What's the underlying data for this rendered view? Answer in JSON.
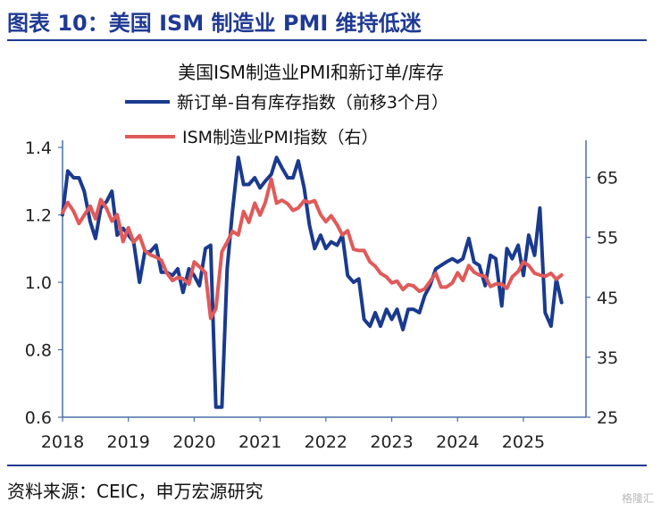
{
  "header": {
    "title": "图表 10：美国 ISM 制造业 PMI 维持低迷"
  },
  "footer": {
    "source": "资料来源：CEIC，申万宏源研究",
    "watermark": "格隆汇"
  },
  "colors": {
    "heading": "#1f3a93",
    "series_left": "#1a3a8f",
    "series_right": "#e05a5a",
    "axis": "#4a6fa5"
  },
  "chart_data": {
    "type": "line",
    "title": "美国ISM制造业PMI和新订单/库存",
    "legend_position": "top",
    "grid": false,
    "x_ticks": [
      "2018",
      "2019",
      "2020",
      "2021",
      "2022",
      "2023",
      "2024",
      "2025"
    ],
    "y_left": {
      "lim": [
        0.6,
        1.4
      ],
      "ticks": [
        "0.6",
        "0.8",
        "1.0",
        "1.2",
        "1.4"
      ]
    },
    "y_right": {
      "lim": [
        25,
        70
      ],
      "ticks": [
        "25",
        "35",
        "45",
        "55",
        "65"
      ]
    },
    "series": [
      {
        "name": "新订单-自有库存指数（前移3个月）",
        "axis": "left",
        "color": "#1a3a8f",
        "x": [
          2018.0,
          2018.08,
          2018.17,
          2018.25,
          2018.33,
          2018.42,
          2018.5,
          2018.58,
          2018.67,
          2018.75,
          2018.83,
          2018.92,
          2019.0,
          2019.08,
          2019.17,
          2019.25,
          2019.33,
          2019.42,
          2019.5,
          2019.58,
          2019.67,
          2019.75,
          2019.83,
          2019.92,
          2020.0,
          2020.08,
          2020.17,
          2020.25,
          2020.33,
          2020.42,
          2020.5,
          2020.58,
          2020.67,
          2020.75,
          2020.83,
          2020.92,
          2021.0,
          2021.08,
          2021.17,
          2021.25,
          2021.33,
          2021.42,
          2021.5,
          2021.58,
          2021.67,
          2021.75,
          2021.83,
          2021.92,
          2022.0,
          2022.08,
          2022.17,
          2022.25,
          2022.33,
          2022.42,
          2022.5,
          2022.58,
          2022.67,
          2022.75,
          2022.83,
          2022.92,
          2023.0,
          2023.08,
          2023.17,
          2023.25,
          2023.33,
          2023.42,
          2023.5,
          2023.58,
          2023.67,
          2023.75,
          2023.83,
          2023.92,
          2024.0,
          2024.08,
          2024.17,
          2024.25,
          2024.33,
          2024.42,
          2024.5,
          2024.58,
          2024.67,
          2024.75,
          2024.83,
          2024.92,
          2025.0,
          2025.08,
          2025.17,
          2025.25,
          2025.33,
          2025.42,
          2025.5,
          2025.58
        ],
        "values": [
          1.2,
          1.33,
          1.31,
          1.31,
          1.27,
          1.18,
          1.13,
          1.22,
          1.24,
          1.27,
          1.14,
          1.16,
          1.14,
          1.12,
          1.0,
          1.09,
          1.09,
          1.11,
          1.03,
          1.03,
          1.02,
          1.04,
          0.97,
          1.04,
          1.02,
          0.99,
          1.1,
          1.11,
          0.63,
          0.63,
          1.04,
          1.21,
          1.37,
          1.29,
          1.29,
          1.31,
          1.28,
          1.3,
          1.32,
          1.37,
          1.34,
          1.31,
          1.31,
          1.36,
          1.28,
          1.17,
          1.1,
          1.14,
          1.1,
          1.12,
          1.11,
          1.14,
          1.02,
          1.0,
          1.01,
          0.89,
          0.87,
          0.91,
          0.87,
          0.92,
          0.89,
          0.92,
          0.86,
          0.92,
          0.92,
          0.91,
          0.96,
          0.99,
          1.04,
          1.05,
          1.06,
          1.07,
          1.06,
          1.07,
          1.13,
          1.06,
          1.05,
          0.99,
          1.08,
          1.07,
          0.93,
          1.1,
          1.07,
          1.11,
          1.02,
          1.14,
          1.08,
          1.22,
          0.91,
          0.87,
          1.01,
          0.94
        ]
      },
      {
        "name": "ISM制造业PMI指数（右）",
        "axis": "right",
        "color": "#e05a5a",
        "x": [
          2018.0,
          2018.08,
          2018.17,
          2018.25,
          2018.33,
          2018.42,
          2018.5,
          2018.58,
          2018.67,
          2018.75,
          2018.83,
          2018.92,
          2019.0,
          2019.08,
          2019.17,
          2019.25,
          2019.33,
          2019.42,
          2019.5,
          2019.58,
          2019.67,
          2019.75,
          2019.83,
          2019.92,
          2020.0,
          2020.08,
          2020.17,
          2020.25,
          2020.33,
          2020.42,
          2020.5,
          2020.58,
          2020.67,
          2020.75,
          2020.83,
          2020.92,
          2021.0,
          2021.08,
          2021.17,
          2021.25,
          2021.33,
          2021.42,
          2021.5,
          2021.58,
          2021.67,
          2021.75,
          2021.83,
          2021.92,
          2022.0,
          2022.08,
          2022.17,
          2022.25,
          2022.33,
          2022.42,
          2022.5,
          2022.58,
          2022.67,
          2022.75,
          2022.83,
          2022.92,
          2023.0,
          2023.08,
          2023.17,
          2023.25,
          2023.33,
          2023.42,
          2023.5,
          2023.58,
          2023.67,
          2023.75,
          2023.83,
          2023.92,
          2024.0,
          2024.08,
          2024.17,
          2024.25,
          2024.33,
          2024.42,
          2024.5,
          2024.58,
          2024.67,
          2024.75,
          2024.83,
          2024.92,
          2025.0,
          2025.08,
          2025.17,
          2025.25,
          2025.33,
          2025.42,
          2025.5,
          2025.58
        ],
        "values": [
          59.1,
          60.8,
          59.3,
          57.3,
          58.7,
          60.2,
          58.1,
          61.3,
          59.8,
          57.7,
          58.8,
          54.3,
          56.6,
          54.2,
          55.3,
          52.8,
          52.1,
          51.7,
          51.2,
          49.1,
          47.8,
          48.3,
          48.1,
          47.2,
          50.9,
          50.1,
          49.1,
          41.5,
          43.1,
          52.6,
          54.2,
          56.0,
          55.4,
          59.3,
          57.5,
          60.7,
          58.7,
          60.8,
          64.7,
          60.7,
          61.2,
          60.6,
          59.5,
          59.9,
          61.1,
          60.8,
          61.1,
          58.8,
          57.6,
          58.6,
          57.1,
          55.4,
          56.1,
          53.0,
          52.8,
          52.8,
          50.9,
          50.2,
          49.0,
          48.4,
          47.4,
          47.7,
          46.3,
          47.1,
          46.9,
          46.0,
          46.4,
          47.6,
          49.0,
          46.7,
          46.7,
          47.4,
          49.1,
          47.8,
          50.3,
          49.2,
          48.7,
          48.5,
          46.8,
          47.2,
          47.2,
          46.5,
          48.4,
          49.3,
          50.9,
          50.3,
          49.0,
          48.7,
          48.5,
          49.0,
          48.0,
          48.7
        ]
      }
    ]
  }
}
